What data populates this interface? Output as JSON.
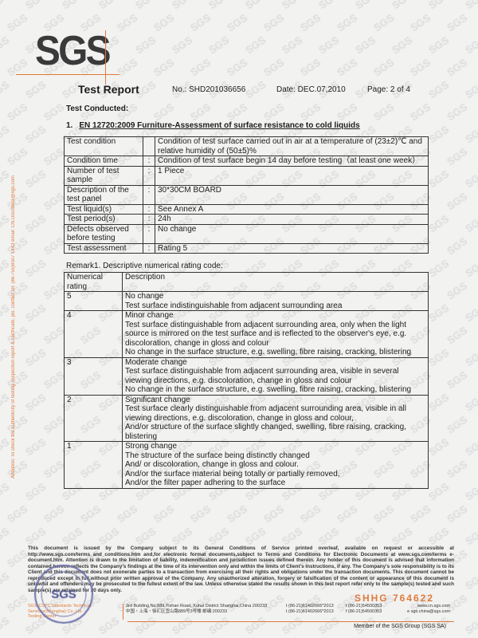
{
  "watermark": "SGS",
  "logo": "SGS",
  "header": {
    "title": "Test Report",
    "number": "No.: SHD201036656",
    "date": "Date: DEC.07,2010",
    "page": "Page: 2 of 4"
  },
  "test_conducted": "Test Conducted:",
  "section": {
    "num": "1.",
    "title": "EN 12720:2009 Furniture-Assessment of surface resistance to cold liquids"
  },
  "conditions": [
    {
      "label": "Test condition",
      "sep": "",
      "value": "Condition of test surface carried out in air at a temperature of (23±2)℃ and relative humidity of (50±5)%"
    },
    {
      "label": "Condition time",
      "sep": ":",
      "value": "Condition of test surface begin 14 day before testing（at least one week）"
    },
    {
      "label": "Number of test sample",
      "sep": ":",
      "value": "1 Piece"
    },
    {
      "label": "Description of the test panel",
      "sep": ":",
      "value": "30*30CM BOARD"
    },
    {
      "label": "Test liquid(s)",
      "sep": ":",
      "value": "See Annex A"
    },
    {
      "label": "Test period(s)",
      "sep": ":",
      "value": "24h"
    },
    {
      "label": "Defects observed before testing",
      "sep": ":",
      "value": "No change"
    },
    {
      "label": "Test assessment",
      "sep": ":",
      "value": "Rating 5"
    }
  ],
  "remark": "Remark1. Descriptive numerical rating code:",
  "rating_table": {
    "headers": [
      "Numerical rating",
      "Description"
    ],
    "rows": [
      {
        "rating": "5",
        "lines": [
          "No change",
          "Test surface indistinguishable from adjacent surrounding area"
        ]
      },
      {
        "rating": "4",
        "lines": [
          "Minor change",
          "Test surface distinguishable from adjacent surrounding area, only when the light source is mirrored on the test surface and is reflected to the observer's eye, e.g. discoloration, change in gloss and colour",
          "No change in the surface structure, e.g. swelling, fibre raising, cracking, blistering"
        ]
      },
      {
        "rating": "3",
        "lines": [
          "Moderate change",
          "Test surface distinguishable from adjacent surrounding area, visible in several viewing directions, e.g. discoloration, change in gloss and colour",
          "No change in the surface structure, e.g. swelling, fibre raising, cracking, blistering"
        ]
      },
      {
        "rating": "2",
        "lines": [
          "Significant change",
          "Test surface clearly distinguishable from adjacent surrounding area, visible in all viewing directions, e.g. discoloration, change in gloss and colour,",
          "And/or structure of the surface slightly changed, swelling, fibre raising, cracking, blistering"
        ]
      },
      {
        "rating": "1",
        "lines": [
          "Strong change",
          "The structure of the surface being distinctly changed",
          "And/ or discoloration, change in gloss and colour.",
          "And/or the surface material being totally or partially removed,",
          "And/or the filter paper adhering to the surface"
        ]
      }
    ]
  },
  "side_notice": "Attention: To check the authenticity of testing /inspection report & certificate, pls. contact tel: (86-755)8307 1443 email: CN.Doccheck@sgs.com",
  "legal": "This document is issued by the Company subject to its General Conditions of Service printed overleaf, available on request or accessible at http://www.sgs.com/terms_and_conditions.htm and,for electronic format documents,subject to Terms and Conditions for Electronic Documents at www.sgs.com/terms e-document.htm. Attention is drawn to the limitation of liability, indemnification and jurisdiction issues defined therein. Any holder of this document is advised that information contained hereon reflects the Company's findings at the time of its intervention only and within the limits of Client's instructions, if any. The Company's sole responsibility is to its Client and this document does not exonerate parties to a transaction from exercising all their rights and obligations under the transaction documents. This document cannot be reproduced except in full,without prior written approval of the Company. Any unauthorized alteration, forgery or falsification of the content or appearance of this document is unlawful and offenders may be prosecuted to the fullest extent of the law. Unless otherwise stated the results shown in this test report refer only to the sample(s) tested and such sample(s) are retained for 30 days only.",
  "stamp": "SGS",
  "serial": "SHHG  764622",
  "footer": {
    "company": "SGS-CSTC Standards Technical Services(Shanghai) Co.,Ltd.",
    "center": "Testing Center",
    "address_en": "3rd Building,No.889,Yishan Road, Xuhui District Shanghai,China 200233",
    "address_cn": "中国・上海・徐汇区宜山路889号3号楼    邮编:200233",
    "tel1": "t (86-21)61402666*2013",
    "fax1": "f (86-21)54500353",
    "web": "www.cn.sgs.com",
    "tel2": "t (86-21)61402666*2013",
    "fax2": "f (86-21)54500353",
    "email": "e sgs.china@sgs.com",
    "member": "Member of the SGS Group (SGS SA)"
  },
  "colors": {
    "accent": "#e07a3a",
    "stamp": "#6a6fa8"
  }
}
